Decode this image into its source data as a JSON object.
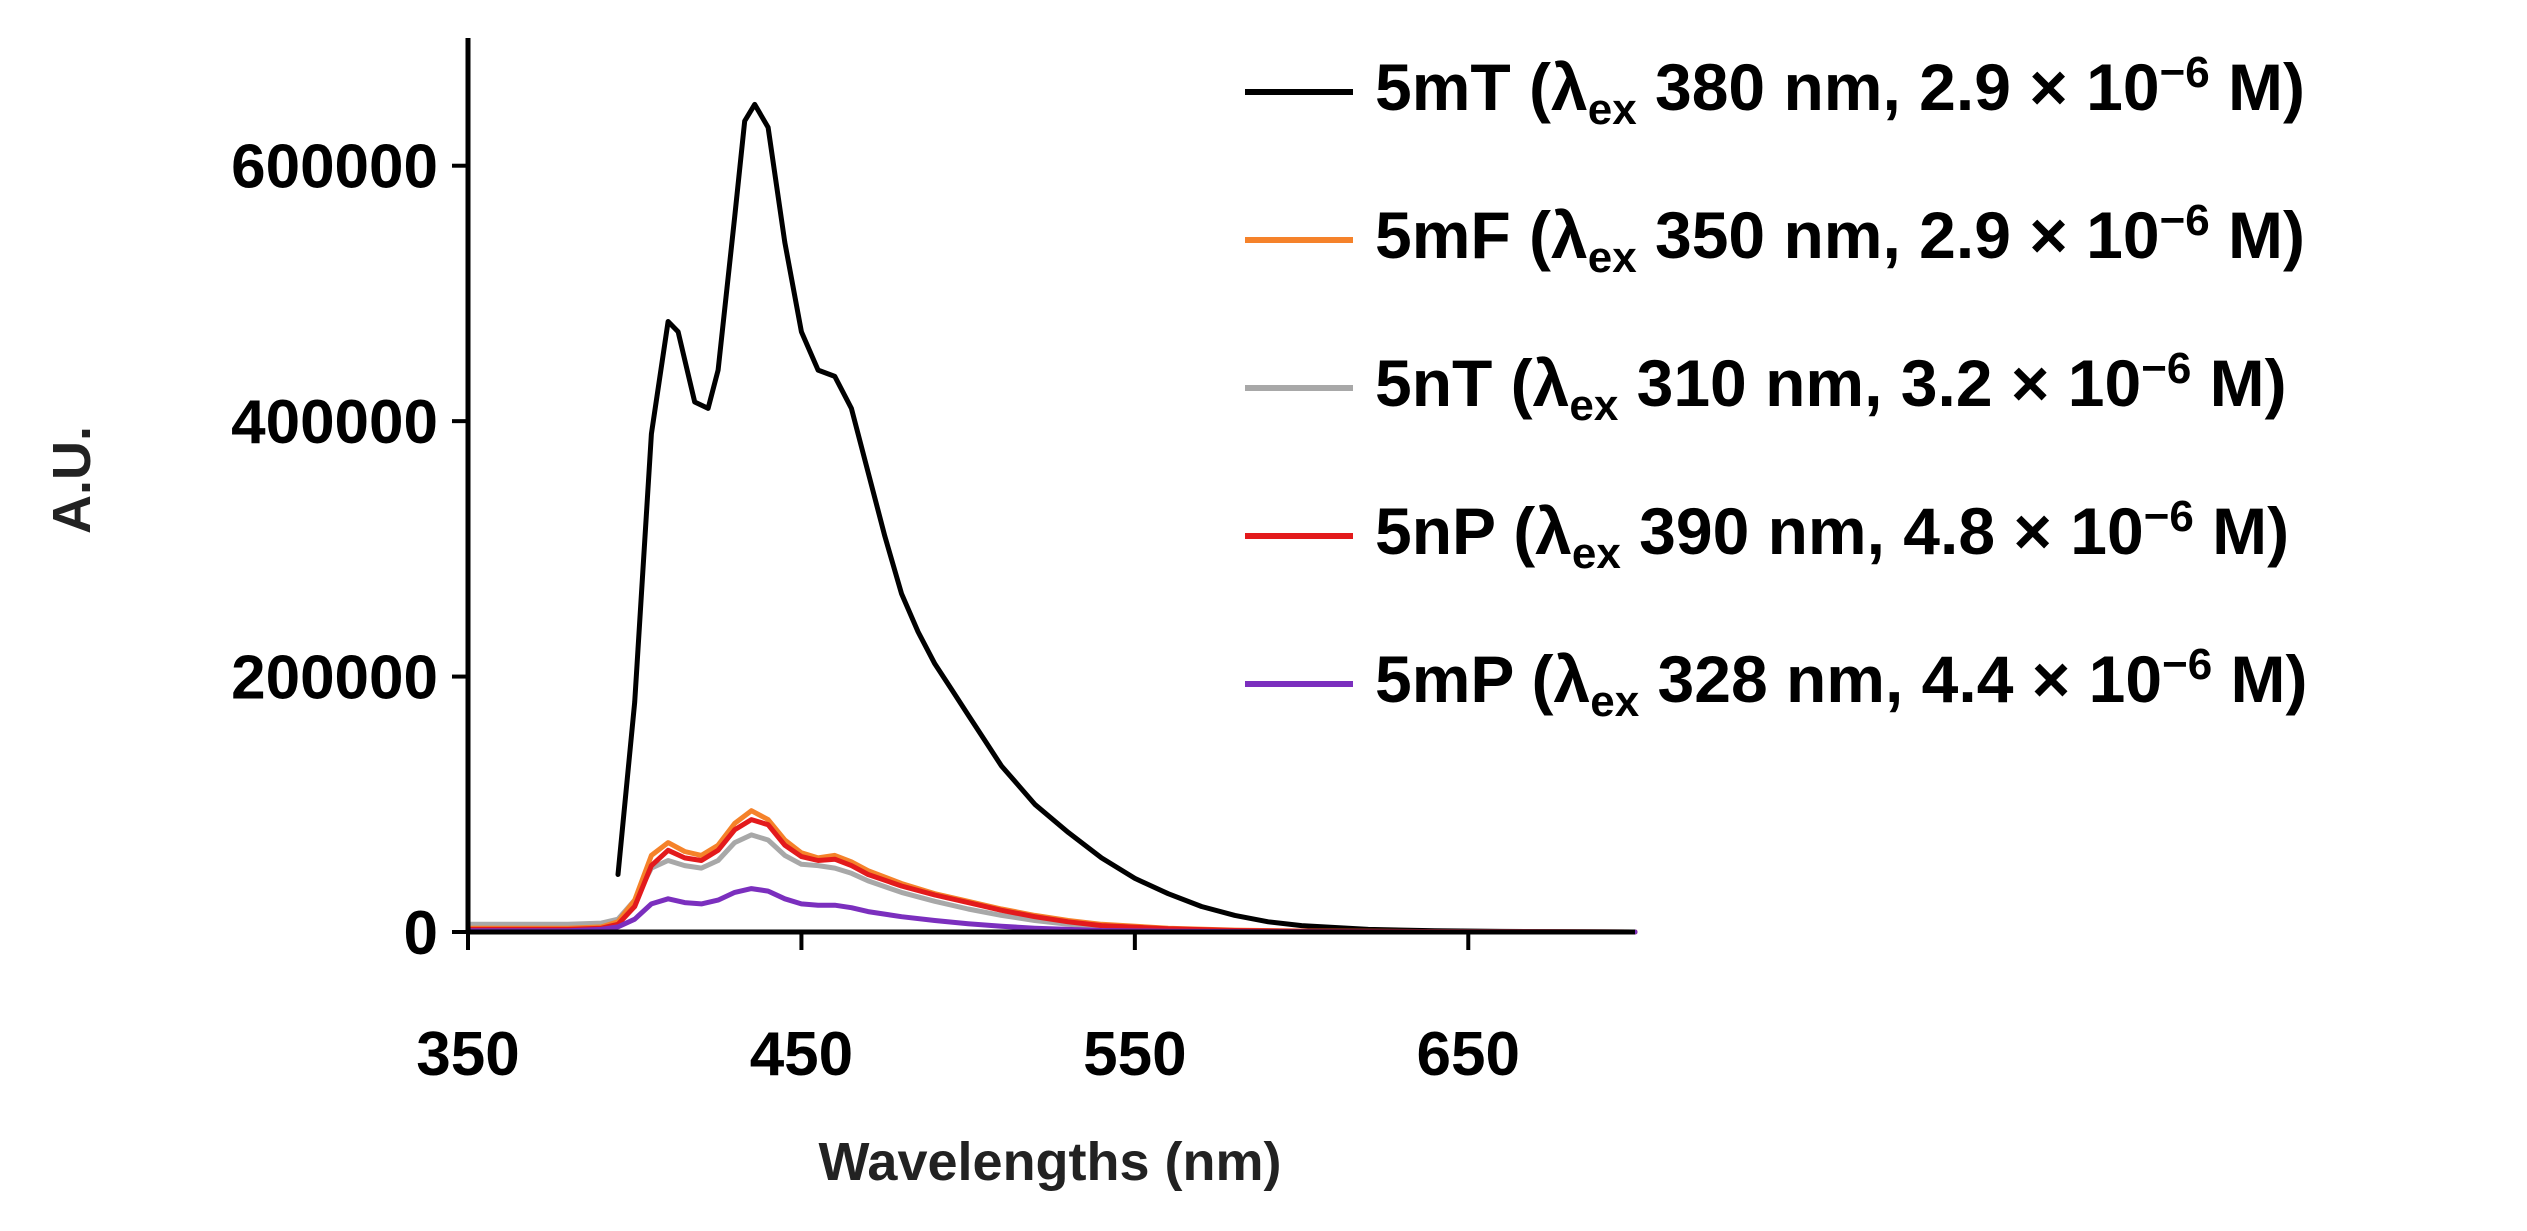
{
  "chart_data": {
    "type": "line",
    "title": "",
    "xlabel": "Wavelengths (nm)",
    "ylabel": "A.U.",
    "xlim": [
      350,
      700
    ],
    "ylim": [
      0,
      700000
    ],
    "xticks": [
      350,
      450,
      550,
      650
    ],
    "yticks": [
      0,
      200000,
      400000,
      600000
    ],
    "grid": false,
    "legend_position": "right",
    "series": [
      {
        "name": "5mT (λex 380 nm, 2.9 × 10−6 M)",
        "label_main": "5mT (λ",
        "label_sub": "ex",
        "label_rest": " 380 nm, 2.9 × 10",
        "label_sup": "−6",
        "label_end": " M)",
        "color": "#000000",
        "x": [
          395,
          400,
          405,
          410,
          413,
          418,
          422,
          425,
          430,
          433,
          436,
          440,
          445,
          450,
          455,
          460,
          465,
          470,
          475,
          480,
          485,
          490,
          495,
          500,
          505,
          510,
          515,
          520,
          530,
          540,
          550,
          560,
          570,
          580,
          590,
          600,
          620,
          640,
          660,
          680,
          700
        ],
        "y": [
          45000,
          180000,
          390000,
          478000,
          470000,
          415000,
          410000,
          440000,
          560000,
          635000,
          648000,
          630000,
          540000,
          470000,
          440000,
          435000,
          410000,
          360000,
          310000,
          265000,
          235000,
          210000,
          190000,
          170000,
          150000,
          130000,
          115000,
          100000,
          78000,
          58000,
          42000,
          30000,
          20000,
          13000,
          8000,
          5000,
          2000,
          1000,
          500,
          200,
          0
        ]
      },
      {
        "name": "5mF (λex 350 nm, 2.9 × 10−6 M)",
        "label_main": "5mF (λ",
        "label_sub": "ex",
        "label_rest": " 350 nm, 2.9 × 10",
        "label_sup": "−6",
        "label_end": " M)",
        "color": "#f5822a",
        "x": [
          350,
          380,
          390,
          395,
          400,
          405,
          410,
          415,
          420,
          425,
          430,
          435,
          440,
          445,
          450,
          455,
          460,
          465,
          470,
          480,
          490,
          500,
          510,
          520,
          530,
          540,
          560,
          580,
          600,
          650,
          700
        ],
        "y": [
          3000,
          3000,
          4000,
          8000,
          25000,
          60000,
          70000,
          63000,
          60000,
          68000,
          85000,
          95000,
          88000,
          72000,
          62000,
          58000,
          60000,
          55000,
          48000,
          38000,
          30000,
          24000,
          18000,
          13000,
          9000,
          6000,
          3000,
          1500,
          800,
          200,
          0
        ]
      },
      {
        "name": "5nT (λex 310 nm, 3.2 × 10−6 M)",
        "label_main": "5nT (λ",
        "label_sub": "ex",
        "label_rest": " 310 nm, 3.2 × 10",
        "label_sup": "−6",
        "label_end": " M)",
        "color": "#a8a8a8",
        "x": [
          350,
          380,
          390,
          395,
          400,
          405,
          410,
          415,
          420,
          425,
          430,
          435,
          440,
          445,
          450,
          455,
          460,
          465,
          470,
          480,
          490,
          500,
          510,
          520,
          530,
          540,
          560,
          580,
          600,
          650,
          700
        ],
        "y": [
          6000,
          6000,
          7000,
          10000,
          25000,
          50000,
          56000,
          52000,
          50000,
          56000,
          70000,
          76000,
          72000,
          60000,
          53000,
          52000,
          50000,
          46000,
          40000,
          31000,
          24000,
          18000,
          13000,
          9000,
          6000,
          4000,
          2000,
          1000,
          500,
          200,
          0
        ]
      },
      {
        "name": "5nP (λex 390 nm, 4.8 × 10−6 M)",
        "label_main": "5nP (λ",
        "label_sub": "ex",
        "label_rest": " 390 nm, 4.8 × 10",
        "label_sup": "−6",
        "label_end": " M)",
        "color": "#e31a1c",
        "x": [
          350,
          380,
          390,
          395,
          400,
          405,
          410,
          415,
          420,
          425,
          430,
          435,
          440,
          445,
          450,
          455,
          460,
          465,
          470,
          480,
          490,
          500,
          510,
          520,
          530,
          540,
          560,
          580,
          600,
          650,
          700
        ],
        "y": [
          2000,
          2000,
          3000,
          6000,
          20000,
          52000,
          64000,
          58000,
          56000,
          64000,
          80000,
          88000,
          84000,
          68000,
          59000,
          56000,
          57000,
          52000,
          45000,
          36000,
          29000,
          23000,
          17000,
          12000,
          8000,
          5000,
          2500,
          1200,
          600,
          200,
          0
        ]
      },
      {
        "name": "5mP (λex 328 nm, 4.4 × 10−6 M)",
        "label_main": "5mP (λ",
        "label_sub": "ex",
        "label_rest": " 328 nm, 4.4 × 10",
        "label_sup": "−6",
        "label_end": " M)",
        "color": "#7b2fbe",
        "x": [
          350,
          380,
          390,
          395,
          400,
          405,
          410,
          415,
          420,
          425,
          430,
          435,
          440,
          445,
          450,
          455,
          460,
          465,
          470,
          480,
          490,
          500,
          510,
          520,
          530,
          540,
          560,
          580,
          600,
          650,
          700
        ],
        "y": [
          1000,
          1000,
          2000,
          4000,
          10000,
          22000,
          26000,
          23000,
          22000,
          25000,
          31000,
          34000,
          32000,
          26000,
          22000,
          21000,
          21000,
          19000,
          16000,
          12000,
          9000,
          6500,
          4500,
          3000,
          2000,
          1200,
          600,
          300,
          150,
          50,
          0
        ]
      }
    ]
  }
}
